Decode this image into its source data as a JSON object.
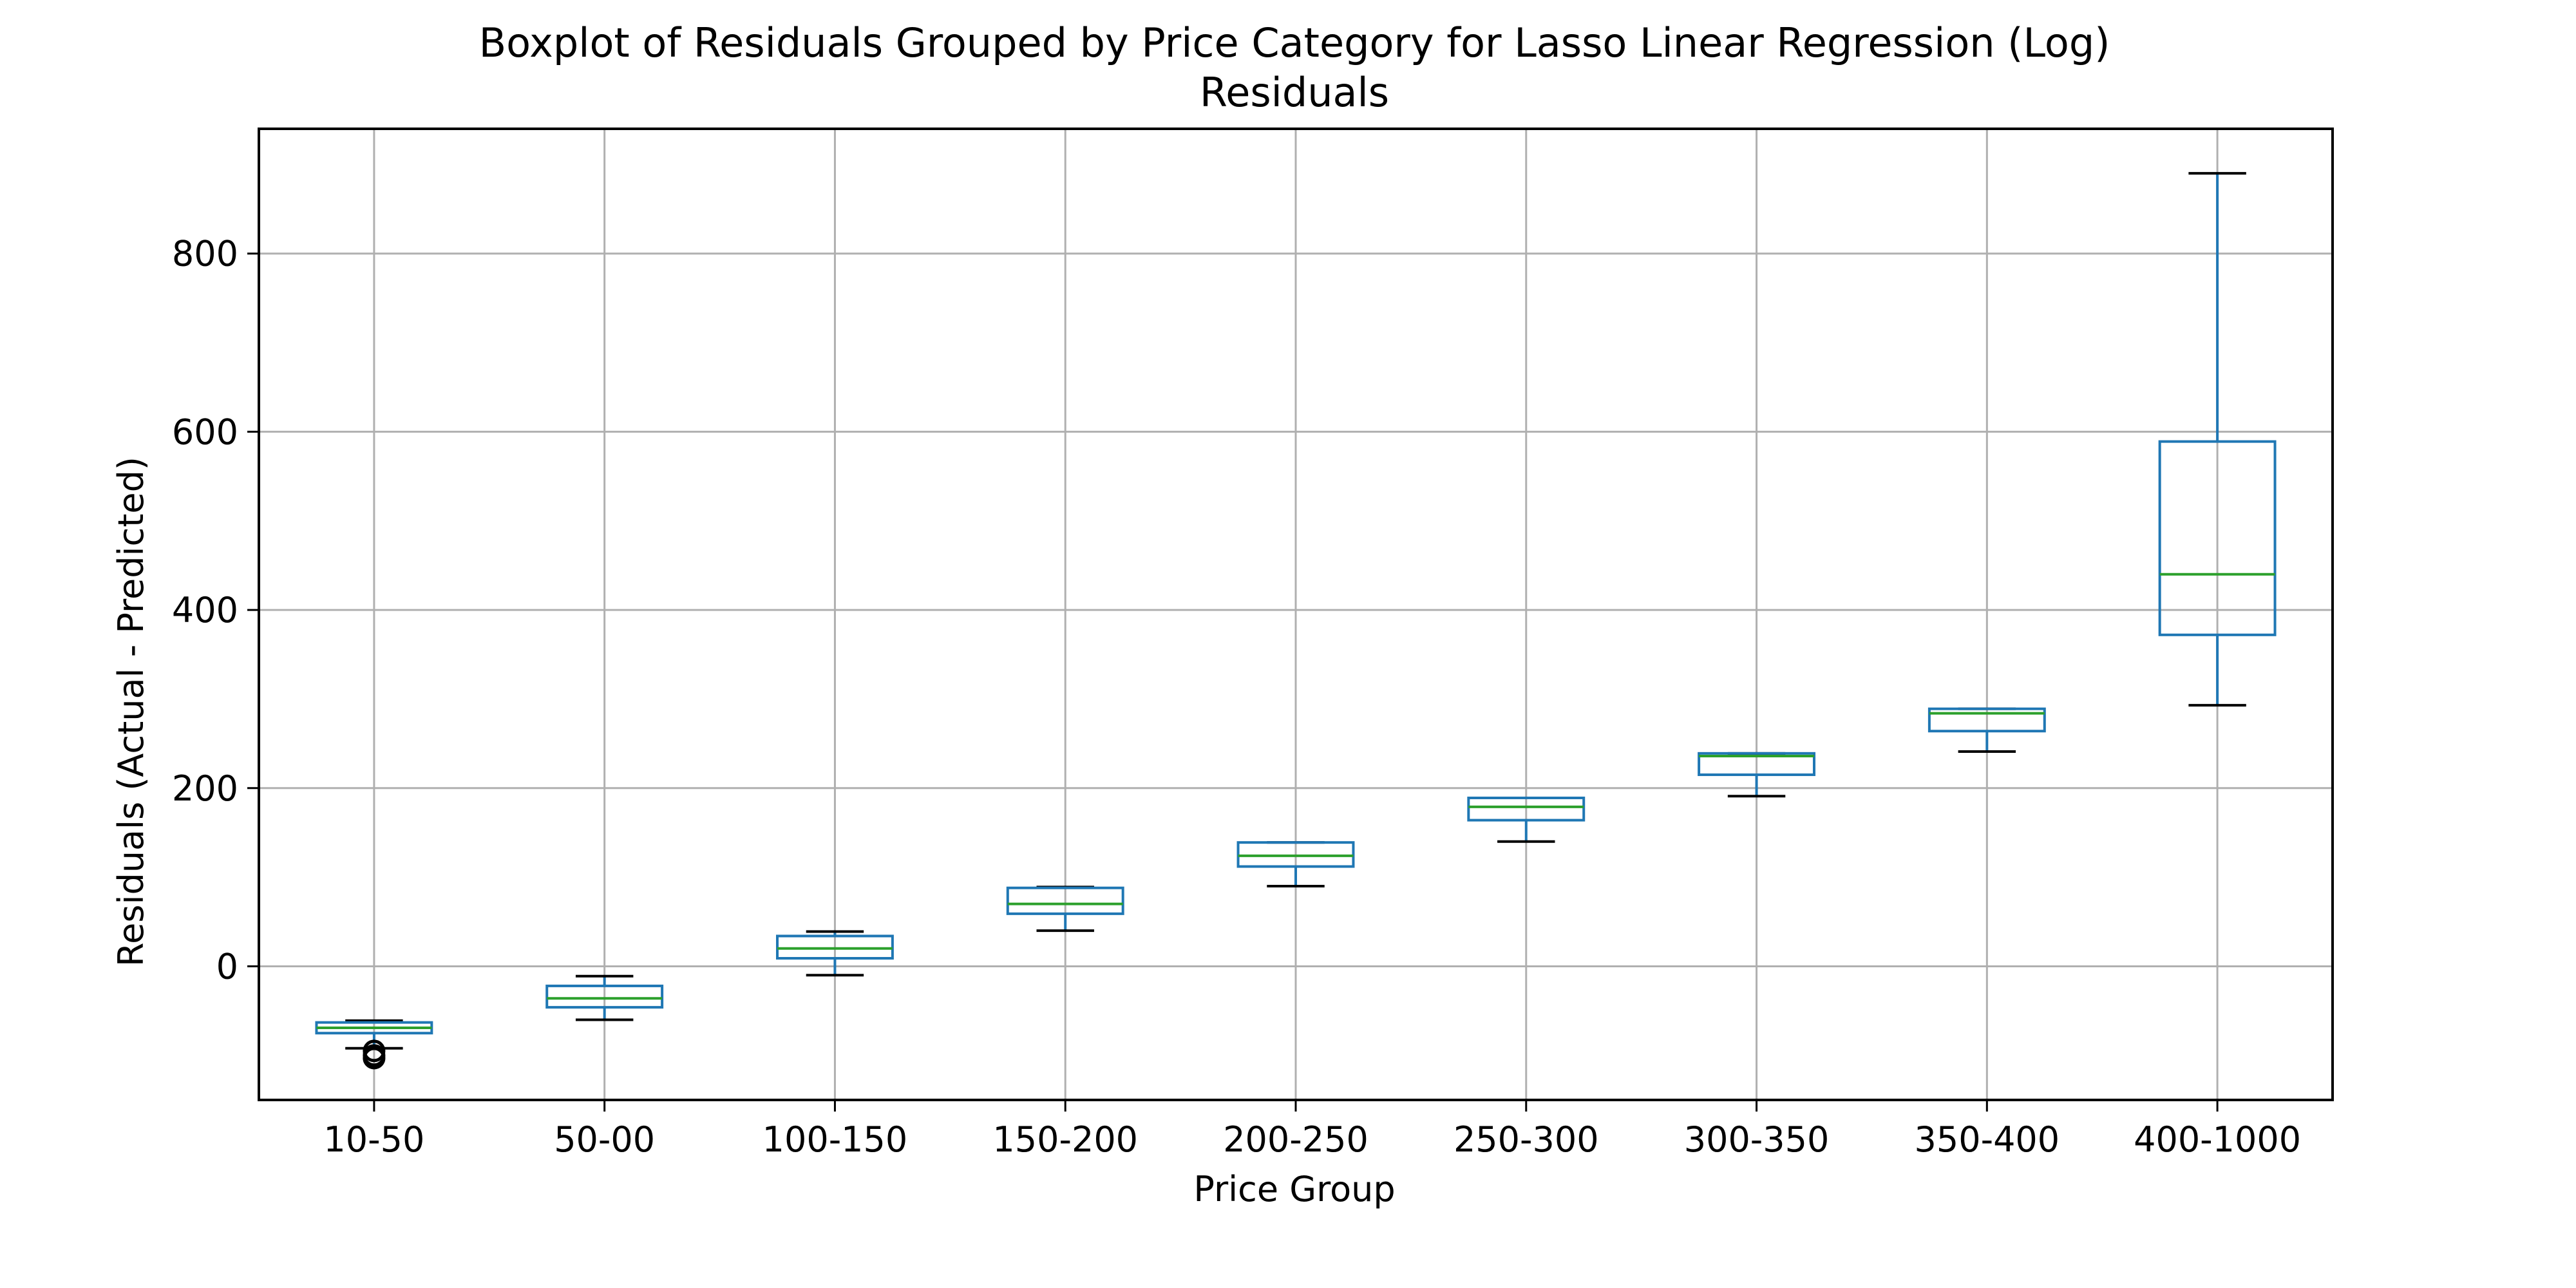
{
  "chart_data": {
    "type": "boxplot",
    "title": "Boxplot of Residuals Grouped by Price Category for Lasso Linear Regression (Log)",
    "subtitle": "Residuals",
    "xlabel": "Price Group",
    "ylabel": "Residuals (Actual - Predicted)",
    "ylim": [
      -150,
      940
    ],
    "yticks": [
      0,
      200,
      400,
      600,
      800
    ],
    "grid": true,
    "categories": [
      "10-50",
      "50-00",
      "100-150",
      "150-200",
      "200-250",
      "250-300",
      "300-350",
      "350-400",
      "400-1000"
    ],
    "boxes": [
      {
        "whisker_low": -92,
        "q1": -75,
        "median": -69,
        "q3": -63,
        "whisker_high": -61,
        "outliers": [
          -95,
          -100,
          -103
        ]
      },
      {
        "whisker_low": -60,
        "q1": -46,
        "median": -36,
        "q3": -22,
        "whisker_high": -11,
        "outliers": []
      },
      {
        "whisker_low": -10,
        "q1": 9,
        "median": 20,
        "q3": 34,
        "whisker_high": 39,
        "outliers": []
      },
      {
        "whisker_low": 40,
        "q1": 59,
        "median": 70,
        "q3": 88,
        "whisker_high": 89,
        "outliers": []
      },
      {
        "whisker_low": 90,
        "q1": 112,
        "median": 124,
        "q3": 139,
        "whisker_high": 139,
        "outliers": []
      },
      {
        "whisker_low": 140,
        "q1": 164,
        "median": 179,
        "q3": 189,
        "whisker_high": 189,
        "outliers": []
      },
      {
        "whisker_low": 191,
        "q1": 215,
        "median": 236,
        "q3": 239,
        "whisker_high": 239,
        "outliers": []
      },
      {
        "whisker_low": 241,
        "q1": 264,
        "median": 284,
        "q3": 289,
        "whisker_high": 289,
        "outliers": []
      },
      {
        "whisker_low": 293,
        "q1": 372,
        "median": 440,
        "q3": 589,
        "whisker_high": 890,
        "outliers": []
      }
    ],
    "colors": {
      "box": "#1f77b4",
      "median": "#2ca02c",
      "cap": "#000000",
      "grid": "#b0b0b0",
      "outlier": "#000000"
    }
  }
}
